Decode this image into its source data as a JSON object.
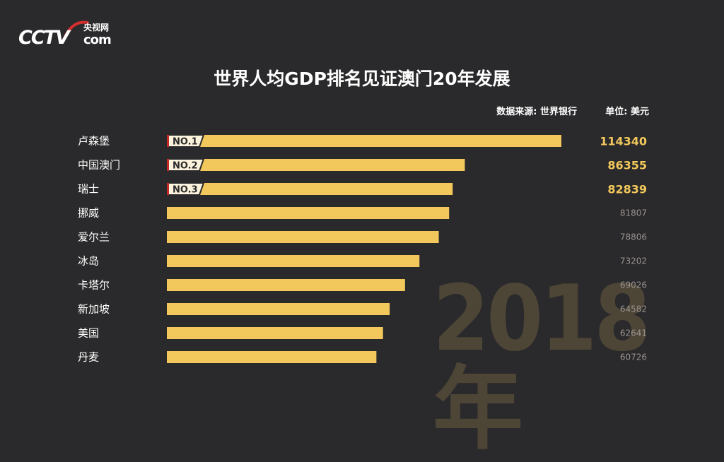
{
  "brand": {
    "cctv": "CCTV",
    "cn": "央视网",
    "com": "com"
  },
  "title": "世界人均GDP排名见证澳门20年发展",
  "source": "数据来源: 世界银行",
  "unit": "单位: 美元",
  "year": "2018年",
  "colors": {
    "bar": "#f2c85c",
    "background": "#2a292b",
    "rank_accent": "#c62828"
  },
  "chart_data": {
    "type": "bar",
    "orientation": "horizontal",
    "title": "世界人均GDP排名见证澳门20年发展",
    "categories": [
      "卢森堡",
      "中国澳门",
      "瑞士",
      "挪威",
      "爱尔兰",
      "冰岛",
      "卡塔尔",
      "新加坡",
      "美国",
      "丹麦"
    ],
    "values": [
      114340,
      86355,
      82839,
      81807,
      78806,
      73202,
      69026,
      64582,
      62641,
      60726
    ],
    "value_labels": [
      "114340",
      "86355",
      "82839",
      "81807",
      "78806",
      "73202",
      "69026",
      "64582",
      "62641",
      "60726"
    ],
    "rank_labels": [
      "NO.1",
      "NO.2",
      "NO.3"
    ],
    "xlim": [
      0,
      117000
    ],
    "grid": false,
    "legend": "none"
  }
}
